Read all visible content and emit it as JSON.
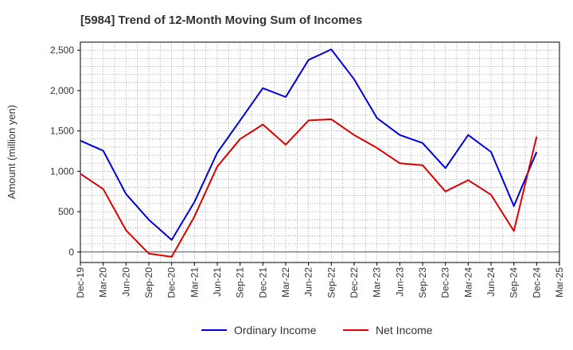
{
  "chart_data": {
    "type": "line",
    "title": "[5984]  Trend of 12-Month Moving Sum of Incomes",
    "xlabel": "",
    "ylabel": "Amount (million yen)",
    "ylim": [
      -130,
      2600
    ],
    "yticks": [
      0,
      500,
      1000,
      1500,
      2000,
      2500
    ],
    "ytick_labels": [
      "0",
      "500",
      "1,000",
      "1,500",
      "2,000",
      "2,500"
    ],
    "categories": [
      "Dec-19",
      "Mar-20",
      "Jun-20",
      "Sep-20",
      "Dec-20",
      "Mar-21",
      "Jun-21",
      "Sep-21",
      "Dec-21",
      "Mar-22",
      "Jun-22",
      "Sep-22",
      "Dec-22",
      "Mar-23",
      "Jun-23",
      "Sep-23",
      "Dec-23",
      "Mar-24",
      "Jun-24",
      "Sep-24",
      "Dec-24",
      "Mar-25"
    ],
    "series": [
      {
        "name": "Ordinary Income",
        "color": "#0000dd",
        "values": [
          1380,
          1255,
          720,
          400,
          150,
          620,
          1230,
          1630,
          2030,
          1920,
          2380,
          2510,
          2140,
          1660,
          1450,
          1350,
          1040,
          1450,
          1240,
          570,
          1240,
          null
        ]
      },
      {
        "name": "Net Income",
        "color": "#dd0000",
        "values": [
          970,
          780,
          270,
          -20,
          -60,
          440,
          1060,
          1400,
          1580,
          1330,
          1630,
          1645,
          1450,
          1290,
          1100,
          1075,
          750,
          890,
          710,
          260,
          1430,
          null
        ]
      }
    ],
    "grid": true,
    "legend": "bottom-center"
  }
}
